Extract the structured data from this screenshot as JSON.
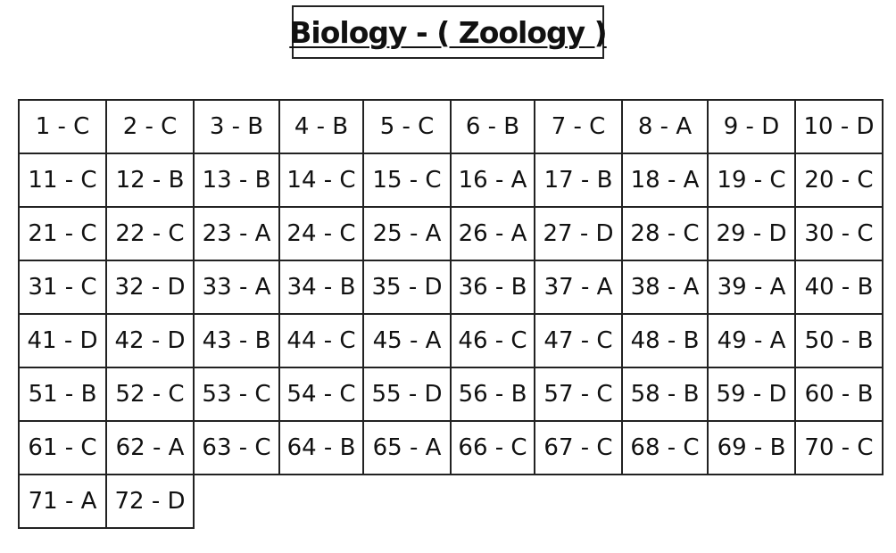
{
  "title": "Biology - ( Zoology )",
  "answer_key": [
    [
      "1 - C",
      "2 - C",
      "3 - B",
      "4 - B",
      "5 - C",
      "6 - B",
      "7 - C",
      "8 - A",
      "9 - D",
      "10 - D"
    ],
    [
      "11 - C",
      "12 - B",
      "13 - B",
      "14 - C",
      "15 - C",
      "16 - A",
      "17 - B",
      "18 - A",
      "19 - C",
      "20 - C"
    ],
    [
      "21 - C",
      "22 - C",
      "23 - A",
      "24 - C",
      "25 - A",
      "26 - A",
      "27 - D",
      "28 - C",
      "29 - D",
      "30 - C"
    ],
    [
      "31 - C",
      "32 - D",
      "33 - A",
      "34 - B",
      "35 - D",
      "36 - B",
      "37 - A",
      "38 - A",
      "39 - A",
      "40 - B"
    ],
    [
      "41 - D",
      "42 - D",
      "43 - B",
      "44 - C",
      "45 - A",
      "46 - C",
      "47 - C",
      "48 - B",
      "49 - A",
      "50 - B"
    ],
    [
      "51 - B",
      "52 - C",
      "53 - C",
      "54 - C",
      "55 - D",
      "56 - B",
      "57 - C",
      "58 - B",
      "59 - D",
      "60 - B"
    ],
    [
      "61 - C",
      "62 - A",
      "63 - C",
      "64 - B",
      "65 - A",
      "66 - C",
      "67 - C",
      "68 - C",
      "69 - B",
      "70 - C"
    ],
    [
      "71 - A",
      "72 - D"
    ]
  ]
}
